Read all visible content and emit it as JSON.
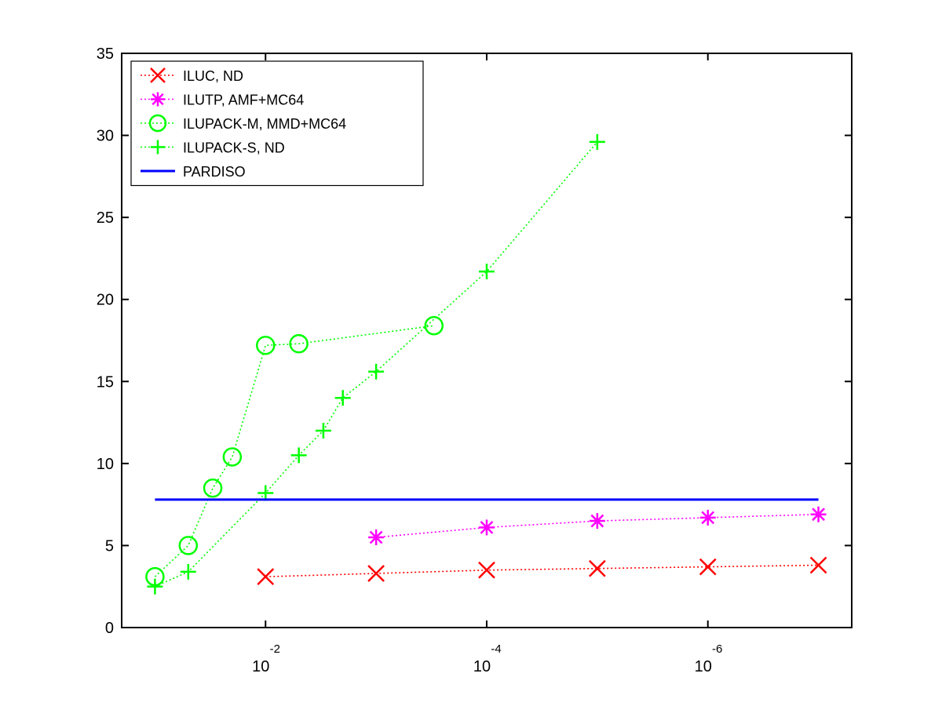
{
  "chart_data": {
    "type": "line",
    "x_scale": "log-reversed",
    "xlim": [
      0.2,
      5e-08
    ],
    "ylim": [
      0,
      35
    ],
    "x_ticks": [
      {
        "value": 0.01,
        "base": "10",
        "exponent": "-2"
      },
      {
        "value": 0.0001,
        "base": "10",
        "exponent": "-4"
      },
      {
        "value": 1e-06,
        "base": "10",
        "exponent": "-6"
      }
    ],
    "y_ticks": [
      0,
      5,
      10,
      15,
      20,
      25,
      30,
      35
    ],
    "y_tick_labels": [
      "0",
      "5",
      "10",
      "15",
      "20",
      "25",
      "30",
      "35"
    ],
    "grid": false,
    "legend_position": "top-left",
    "series": [
      {
        "name": "ILUC,  ND",
        "color": "#ff0000",
        "marker": "x",
        "line_style": "dotted",
        "x": [
          0.01,
          0.001,
          0.0001,
          1e-05,
          1e-06,
          1e-07
        ],
        "y": [
          3.1,
          3.3,
          3.5,
          3.6,
          3.7,
          3.8
        ]
      },
      {
        "name": "ILUTP, AMF+MC64",
        "color": "#ff00ff",
        "marker": "asterisk",
        "line_style": "dotted",
        "x": [
          0.001,
          0.0001,
          1e-05,
          1e-06,
          1e-07
        ],
        "y": [
          5.5,
          6.1,
          6.5,
          6.7,
          6.9
        ]
      },
      {
        "name": "ILUPACK-M, MMD+MC64",
        "color": "#00ff00",
        "marker": "circle",
        "line_style": "dotted",
        "x": [
          0.1,
          0.05,
          0.03,
          0.02,
          0.01,
          0.005,
          0.0003
        ],
        "y": [
          3.1,
          5.0,
          8.5,
          10.4,
          17.2,
          17.3,
          18.4
        ]
      },
      {
        "name": "ILUPACK-S, ND",
        "color": "#00ff00",
        "marker": "plus",
        "line_style": "dotted",
        "x": [
          0.1,
          0.05,
          0.01,
          0.005,
          0.003,
          0.002,
          0.001,
          0.0001,
          1e-05
        ],
        "y": [
          2.5,
          3.4,
          8.2,
          10.5,
          12.0,
          14.0,
          15.6,
          21.7,
          29.6
        ]
      },
      {
        "name": "PARDISO",
        "color": "#0000ff",
        "marker": "none",
        "line_style": "solid",
        "x": [
          0.1,
          1e-07
        ],
        "y": [
          7.8,
          7.8
        ]
      }
    ]
  }
}
